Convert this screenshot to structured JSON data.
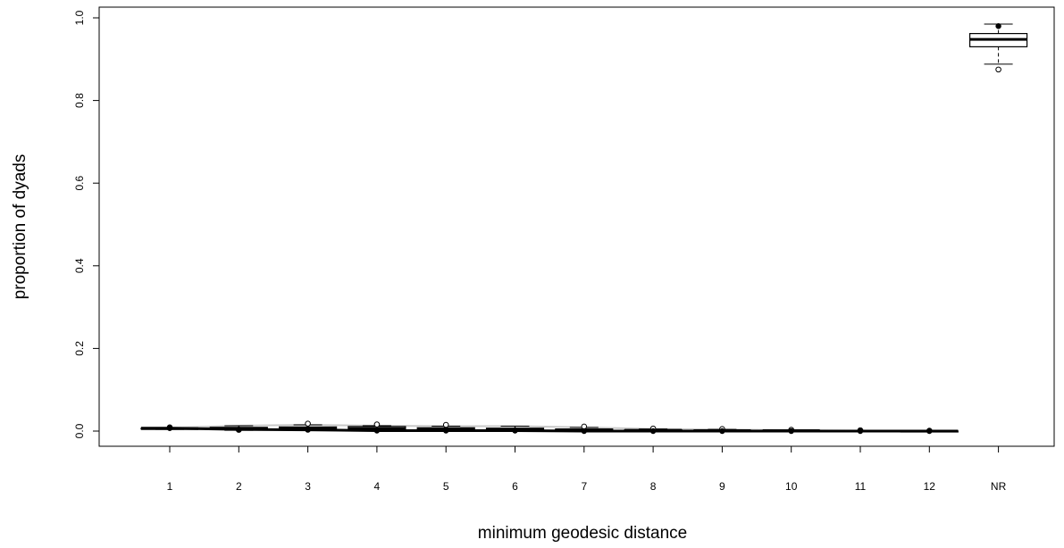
{
  "chart_data": {
    "type": "boxplot",
    "xlabel": "minimum geodesic distance",
    "ylabel": "proportion of dyads",
    "ylim": [
      0,
      1
    ],
    "y_ticks": [
      0.0,
      0.2,
      0.4,
      0.6,
      0.8,
      1.0
    ],
    "y_tick_labels": [
      "0.0",
      "0.2",
      "0.4",
      "0.6",
      "0.8",
      "1.0"
    ],
    "categories": [
      "1",
      "2",
      "3",
      "4",
      "5",
      "6",
      "7",
      "8",
      "9",
      "10",
      "11",
      "12",
      "NR"
    ],
    "boxes": [
      {
        "category": "1",
        "min": 0.004,
        "q1": 0.005,
        "median": 0.006,
        "q3": 0.007,
        "max": 0.008,
        "outliers": [
          0.009
        ]
      },
      {
        "category": "2",
        "min": 0.002,
        "q1": 0.004,
        "median": 0.006,
        "q3": 0.009,
        "max": 0.013,
        "outliers": [
          0.003
        ]
      },
      {
        "category": "3",
        "min": 0.001,
        "q1": 0.003,
        "median": 0.006,
        "q3": 0.01,
        "max": 0.015,
        "outliers": [
          0.018,
          0.004
        ]
      },
      {
        "category": "4",
        "min": 0.0,
        "q1": 0.002,
        "median": 0.006,
        "q3": 0.011,
        "max": 0.013,
        "outliers": [
          0.016
        ]
      },
      {
        "category": "5",
        "min": 0.0,
        "q1": 0.002,
        "median": 0.005,
        "q3": 0.008,
        "max": 0.012,
        "outliers": [
          0.015
        ]
      },
      {
        "category": "6",
        "min": 0.0,
        "q1": 0.001,
        "median": 0.004,
        "q3": 0.007,
        "max": 0.012,
        "outliers": [
          0.002
        ]
      },
      {
        "category": "7",
        "min": 0.0,
        "q1": 0.001,
        "median": 0.003,
        "q3": 0.005,
        "max": 0.009,
        "outliers": [
          0.011
        ]
      },
      {
        "category": "8",
        "min": 0.0,
        "q1": 0.001,
        "median": 0.002,
        "q3": 0.003,
        "max": 0.005,
        "outliers": [
          0.006
        ]
      },
      {
        "category": "9",
        "min": 0.0,
        "q1": 0.001,
        "median": 0.001,
        "q3": 0.002,
        "max": 0.004,
        "outliers": [
          0.005
        ]
      },
      {
        "category": "10",
        "min": 0.0,
        "q1": 0.0,
        "median": 0.001,
        "q3": 0.001,
        "max": 0.002,
        "outliers": [
          0.003
        ]
      },
      {
        "category": "11",
        "min": 0.0,
        "q1": 0.0,
        "median": 0.0,
        "q3": 0.001,
        "max": 0.001,
        "outliers": [
          0.002
        ]
      },
      {
        "category": "12",
        "min": 0.0,
        "q1": 0.0,
        "median": 0.0,
        "q3": 0.0,
        "max": 0.001,
        "outliers": [
          0.001
        ]
      },
      {
        "category": "NR",
        "min": 0.888,
        "q1": 0.93,
        "median": 0.948,
        "q3": 0.962,
        "max": 0.985,
        "outliers": [
          0.875
        ]
      }
    ],
    "overlay_points": [
      {
        "category": "1",
        "y": 0.007
      },
      {
        "category": "2",
        "y": 0.004
      },
      {
        "category": "3",
        "y": 0.003
      },
      {
        "category": "4",
        "y": 0.001
      },
      {
        "category": "5",
        "y": 0.001
      },
      {
        "category": "6",
        "y": 0.001
      },
      {
        "category": "7",
        "y": 0.0
      },
      {
        "category": "8",
        "y": 0.0
      },
      {
        "category": "9",
        "y": 0.0
      },
      {
        "category": "10",
        "y": 0.0
      },
      {
        "category": "11",
        "y": 0.0
      },
      {
        "category": "12",
        "y": 0.0
      },
      {
        "category": "NR",
        "y": 0.98
      }
    ],
    "overlay_line_color": "#000000",
    "grey_line_color": "#c8c8c8",
    "grid": false,
    "legend": "none"
  }
}
